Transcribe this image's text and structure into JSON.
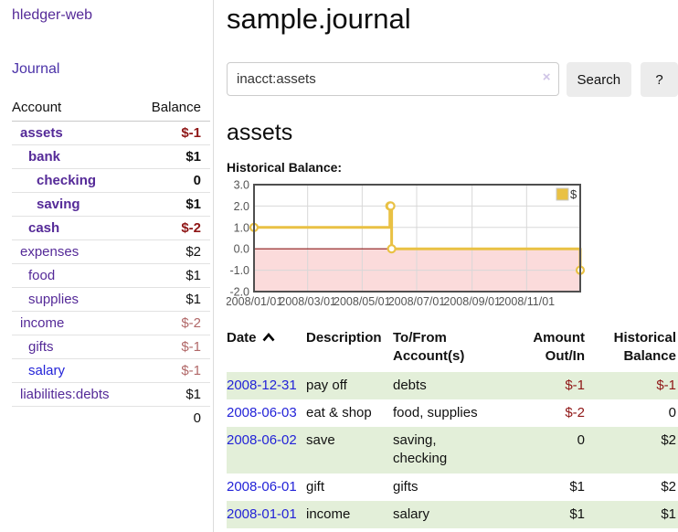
{
  "app": {
    "brand": "hledger-web",
    "nav": {
      "journal": "Journal"
    }
  },
  "sidebar": {
    "header": {
      "account": "Account",
      "balance": "Balance"
    },
    "accounts": [
      {
        "name": "assets",
        "balance": "$-1"
      },
      {
        "name": "bank",
        "balance": "$1"
      },
      {
        "name": "checking",
        "balance": "0"
      },
      {
        "name": "saving",
        "balance": "$1"
      },
      {
        "name": "cash",
        "balance": "$-2"
      },
      {
        "name": "expenses",
        "balance": "$2"
      },
      {
        "name": "food",
        "balance": "$1"
      },
      {
        "name": "supplies",
        "balance": "$1"
      },
      {
        "name": "income",
        "balance": "$-2"
      },
      {
        "name": "gifts",
        "balance": "$-1"
      },
      {
        "name": "salary",
        "balance": "$-1"
      },
      {
        "name": "liabilities:debts",
        "balance": "$1"
      }
    ],
    "total": "0"
  },
  "main": {
    "title": "sample.journal",
    "search": {
      "value": "inacct:assets",
      "clear_icon": "×",
      "button": "Search",
      "help": "?"
    },
    "account_heading": "assets",
    "chart_label": "Historical Balance:"
  },
  "chart_data": {
    "type": "line",
    "steps": true,
    "title": "Historical Balance:",
    "series": [
      {
        "name": "$",
        "color": "#e9c144",
        "points": [
          [
            "2008-01-01",
            1
          ],
          [
            "2008-06-01",
            2
          ],
          [
            "2008-06-02",
            2
          ],
          [
            "2008-06-03",
            0
          ],
          [
            "2008-12-31",
            -1
          ]
        ]
      }
    ],
    "x_range": [
      "2008-01-01",
      "2008-12-31"
    ],
    "ylim": [
      -2,
      3
    ],
    "yticks": [
      3,
      2,
      1,
      0,
      -1,
      -2
    ],
    "ytick_labels": [
      "3.0",
      "2.0",
      "1.0",
      "0.0",
      "-1.0",
      "-2.0"
    ],
    "xticks": [
      "2008-01-01",
      "2008-03-01",
      "2008-05-01",
      "2008-07-01",
      "2008-09-01",
      "2008-11-01"
    ],
    "xtick_labels": [
      "2008/01/01",
      "2008/03/01",
      "2008/05/01",
      "2008/07/01",
      "2008/09/01",
      "2008/11/01"
    ],
    "legend": {
      "label": "$",
      "position": "top-right"
    },
    "negative_fill": "#fbdbdb",
    "zero_line_color": "#8b1a1a",
    "grid": true
  },
  "register": {
    "headers": {
      "date": "Date",
      "description": "Description",
      "tofrom_1": "To/From",
      "tofrom_2": "Account(s)",
      "amount_1": "Amount",
      "amount_2": "Out/In",
      "balance_1": "Historical",
      "balance_2": "Balance"
    },
    "rows": [
      {
        "date": "2008-12-31",
        "description": "pay off",
        "accounts": "debts",
        "amount": "$-1",
        "balance": "$-1"
      },
      {
        "date": "2008-06-03",
        "description": "eat & shop",
        "accounts": "food, supplies",
        "amount": "$-2",
        "balance": "0"
      },
      {
        "date": "2008-06-02",
        "description": "save",
        "accounts": "saving, checking",
        "amount": "0",
        "balance": "$2"
      },
      {
        "date": "2008-06-01",
        "description": "gift",
        "accounts": "gifts",
        "amount": "$1",
        "balance": "$2"
      },
      {
        "date": "2008-01-01",
        "description": "income",
        "accounts": "salary",
        "amount": "$1",
        "balance": "$1"
      }
    ]
  }
}
